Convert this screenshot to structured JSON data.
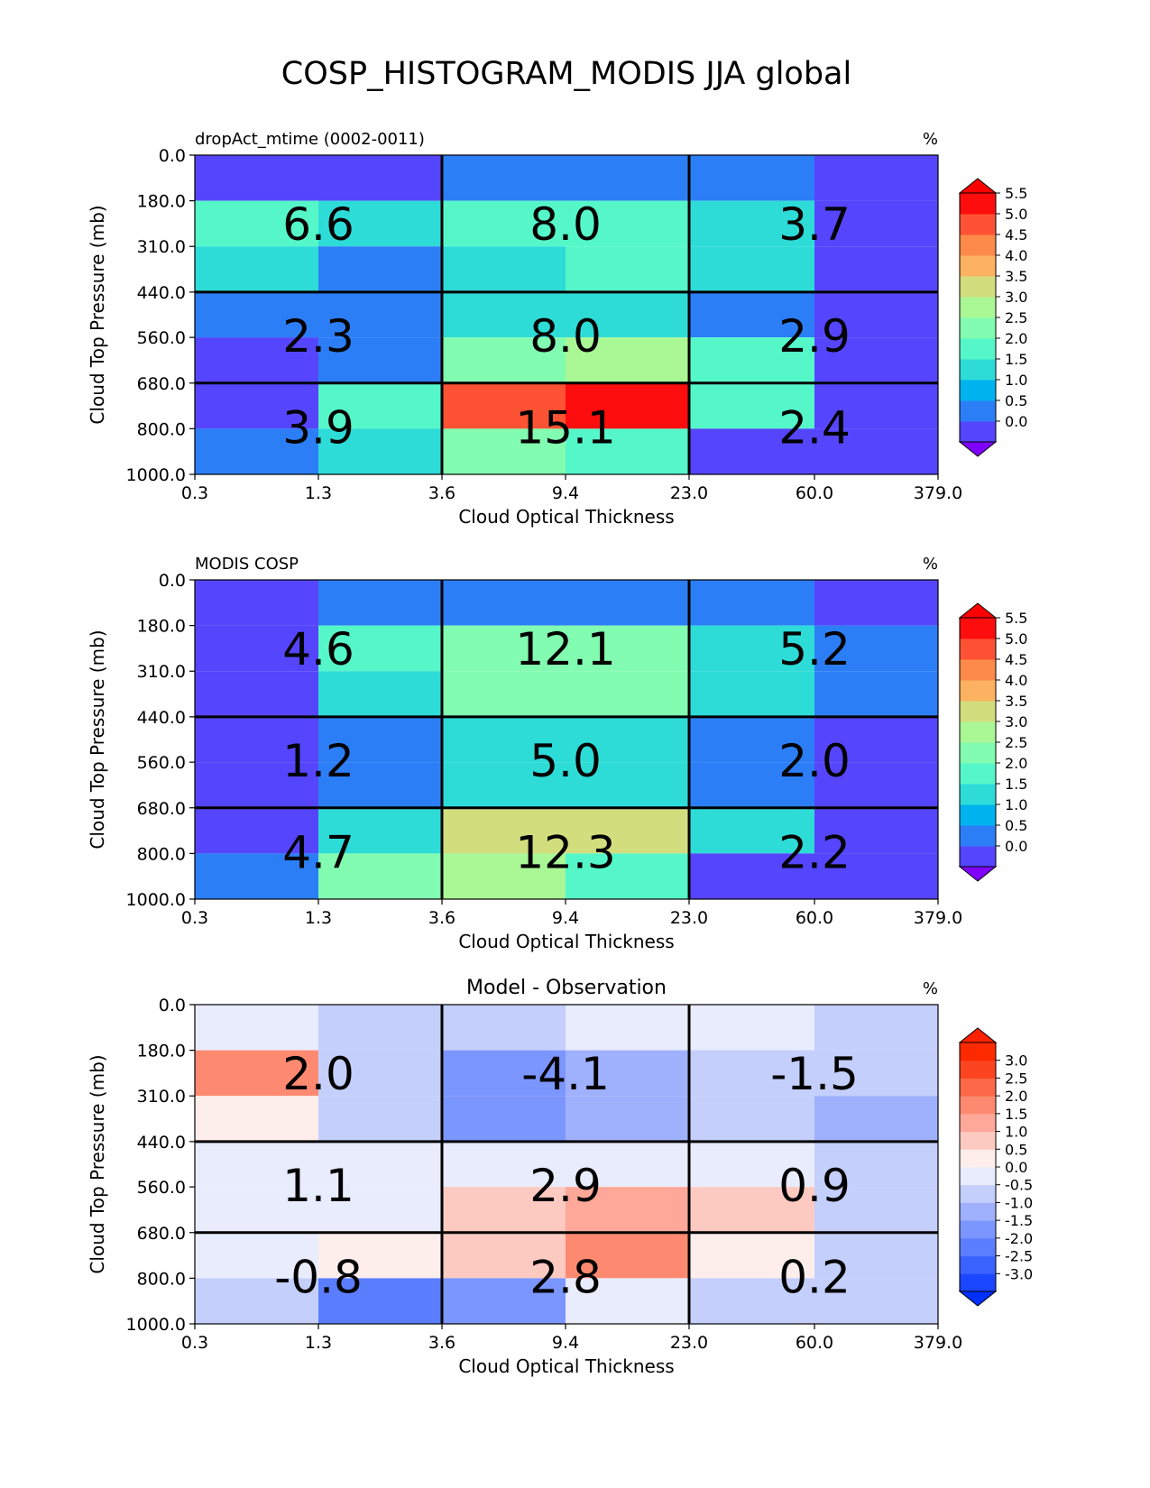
{
  "figure_title": "COSP_HISTOGRAM_MODIS JJA global",
  "chart_data": [
    {
      "type": "heatmap",
      "title_left": "dropAct_mtime (0002-0011)",
      "title_center": "",
      "units": "%",
      "xlabel": "Cloud Optical Thickness",
      "ylabel": "Cloud Top Pressure (mb)",
      "x_tick_labels": [
        "0.3",
        "1.3",
        "3.6",
        "9.4",
        "23.0",
        "60.0",
        "379.0"
      ],
      "y_tick_labels": [
        "0.0",
        "180.0",
        "310.0",
        "440.0",
        "560.0",
        "680.0",
        "800.0",
        "1000.0"
      ],
      "values": [
        [
          0.0,
          0.0,
          0.5,
          0.5,
          0.5,
          0.0
        ],
        [
          2.3,
          1.5,
          2.0,
          2.0,
          1.5,
          0.0
        ],
        [
          1.5,
          0.5,
          1.5,
          2.0,
          1.5,
          0.0
        ],
        [
          0.5,
          0.5,
          1.5,
          1.5,
          0.5,
          0.0
        ],
        [
          0.0,
          0.5,
          2.5,
          3.2,
          2.0,
          0.0
        ],
        [
          0.0,
          2.0,
          5.2,
          5.8,
          2.0,
          0.0
        ],
        [
          0.5,
          1.5,
          2.5,
          2.0,
          0.0,
          0.0
        ]
      ],
      "box_values": [
        [
          "6.6",
          "8.0",
          "3.7"
        ],
        [
          "2.3",
          "8.0",
          "2.9"
        ],
        [
          "3.9",
          "15.1",
          "2.4"
        ]
      ],
      "colorbar": {
        "ticks": [
          "0.0",
          "0.5",
          "1.0",
          "1.5",
          "2.0",
          "2.5",
          "3.0",
          "3.5",
          "4.0",
          "4.5",
          "5.0",
          "5.5"
        ],
        "levels": [
          0.0,
          0.5,
          1.0,
          1.5,
          2.0,
          2.5,
          3.0,
          3.5,
          4.0,
          4.5,
          5.0,
          5.5
        ],
        "colors": [
          "#5545fd",
          "#2c7ef7",
          "#00b3ee",
          "#2ddcd7",
          "#55f7c9",
          "#82fcb0",
          "#aaf796",
          "#d2de7e",
          "#fcb260",
          "#fd8a4a",
          "#fd5233",
          "#fd0d0d"
        ],
        "under_color": "#8000ff",
        "over_color": "#ff0000",
        "extend": "both"
      }
    },
    {
      "type": "heatmap",
      "title_left": "MODIS COSP",
      "title_center": "",
      "units": "%",
      "xlabel": "Cloud Optical Thickness",
      "ylabel": "Cloud Top Pressure (mb)",
      "x_tick_labels": [
        "0.3",
        "1.3",
        "3.6",
        "9.4",
        "23.0",
        "60.0",
        "379.0"
      ],
      "y_tick_labels": [
        "0.0",
        "180.0",
        "310.0",
        "440.0",
        "560.0",
        "680.0",
        "800.0",
        "1000.0"
      ],
      "values": [
        [
          0.0,
          0.5,
          0.5,
          0.5,
          0.5,
          0.0
        ],
        [
          0.0,
          2.0,
          2.7,
          2.7,
          1.5,
          0.5
        ],
        [
          0.0,
          1.5,
          2.7,
          2.7,
          1.5,
          0.5
        ],
        [
          0.0,
          0.5,
          1.5,
          1.5,
          0.5,
          0.0
        ],
        [
          0.0,
          0.5,
          1.5,
          1.5,
          0.5,
          0.0
        ],
        [
          0.0,
          1.5,
          3.7,
          3.7,
          1.5,
          0.0
        ],
        [
          0.5,
          2.7,
          3.2,
          2.0,
          0.0,
          0.0
        ]
      ],
      "box_values": [
        [
          "4.6",
          "12.1",
          "5.2"
        ],
        [
          "1.2",
          "5.0",
          "2.0"
        ],
        [
          "4.7",
          "12.3",
          "2.2"
        ]
      ],
      "colorbar": {
        "ticks": [
          "0.0",
          "0.5",
          "1.0",
          "1.5",
          "2.0",
          "2.5",
          "3.0",
          "3.5",
          "4.0",
          "4.5",
          "5.0",
          "5.5"
        ],
        "levels": [
          0.0,
          0.5,
          1.0,
          1.5,
          2.0,
          2.5,
          3.0,
          3.5,
          4.0,
          4.5,
          5.0,
          5.5
        ],
        "colors": [
          "#5545fd",
          "#2c7ef7",
          "#00b3ee",
          "#2ddcd7",
          "#55f7c9",
          "#82fcb0",
          "#aaf796",
          "#d2de7e",
          "#fcb260",
          "#fd8a4a",
          "#fd5233",
          "#fd0d0d"
        ],
        "under_color": "#8000ff",
        "over_color": "#ff0000",
        "extend": "both"
      }
    },
    {
      "type": "heatmap",
      "title_left": "",
      "title_center": "Model - Observation",
      "units": "%",
      "xlabel": "Cloud Optical Thickness",
      "ylabel": "Cloud Top Pressure (mb)",
      "x_tick_labels": [
        "0.3",
        "1.3",
        "3.6",
        "9.4",
        "23.0",
        "60.0",
        "379.0"
      ],
      "y_tick_labels": [
        "0.0",
        "180.0",
        "310.0",
        "440.0",
        "560.0",
        "680.0",
        "800.0",
        "1000.0"
      ],
      "values": [
        [
          0.2,
          -0.2,
          -0.2,
          0.2,
          0.2,
          -0.2
        ],
        [
          2.2,
          -0.2,
          -1.2,
          -0.7,
          -0.2,
          -0.2
        ],
        [
          0.7,
          -0.2,
          -1.2,
          -0.7,
          -0.2,
          -0.7
        ],
        [
          0.2,
          0.2,
          0.2,
          0.2,
          0.2,
          -0.2
        ],
        [
          0.2,
          0.2,
          1.2,
          1.7,
          1.2,
          -0.2
        ],
        [
          0.2,
          0.7,
          1.2,
          2.2,
          0.7,
          -0.2
        ],
        [
          -0.2,
          -1.7,
          -1.2,
          0.2,
          -0.2,
          -0.2
        ]
      ],
      "box_values": [
        [
          "2.0",
          "-4.1",
          "-1.5"
        ],
        [
          "1.1",
          "2.9",
          "0.9"
        ],
        [
          "-0.8",
          "2.8",
          "0.2"
        ]
      ],
      "colorbar": {
        "ticks": [
          "-3.0",
          "-2.5",
          "-2.0",
          "-1.5",
          "-1.0",
          "-0.5",
          "0.0",
          "0.5",
          "1.0",
          "1.5",
          "2.0",
          "2.5",
          "3.0"
        ],
        "levels": [
          -3.0,
          -2.5,
          -2.0,
          -1.5,
          -1.0,
          -0.5,
          0.0,
          0.5,
          1.0,
          1.5,
          2.0,
          2.5,
          3.0
        ],
        "colors": [
          "#1a46ff",
          "#3a62ff",
          "#5a7eff",
          "#7c96ff",
          "#9fb0fc",
          "#c4cffb",
          "#e8ecfd",
          "#fdeeec",
          "#fdcac2",
          "#fda898",
          "#fd8a70",
          "#fd6848",
          "#fd4420",
          "#fd2a00"
        ],
        "under_color": "#0030ff",
        "over_color": "#ff2000",
        "extend": "both"
      }
    }
  ]
}
